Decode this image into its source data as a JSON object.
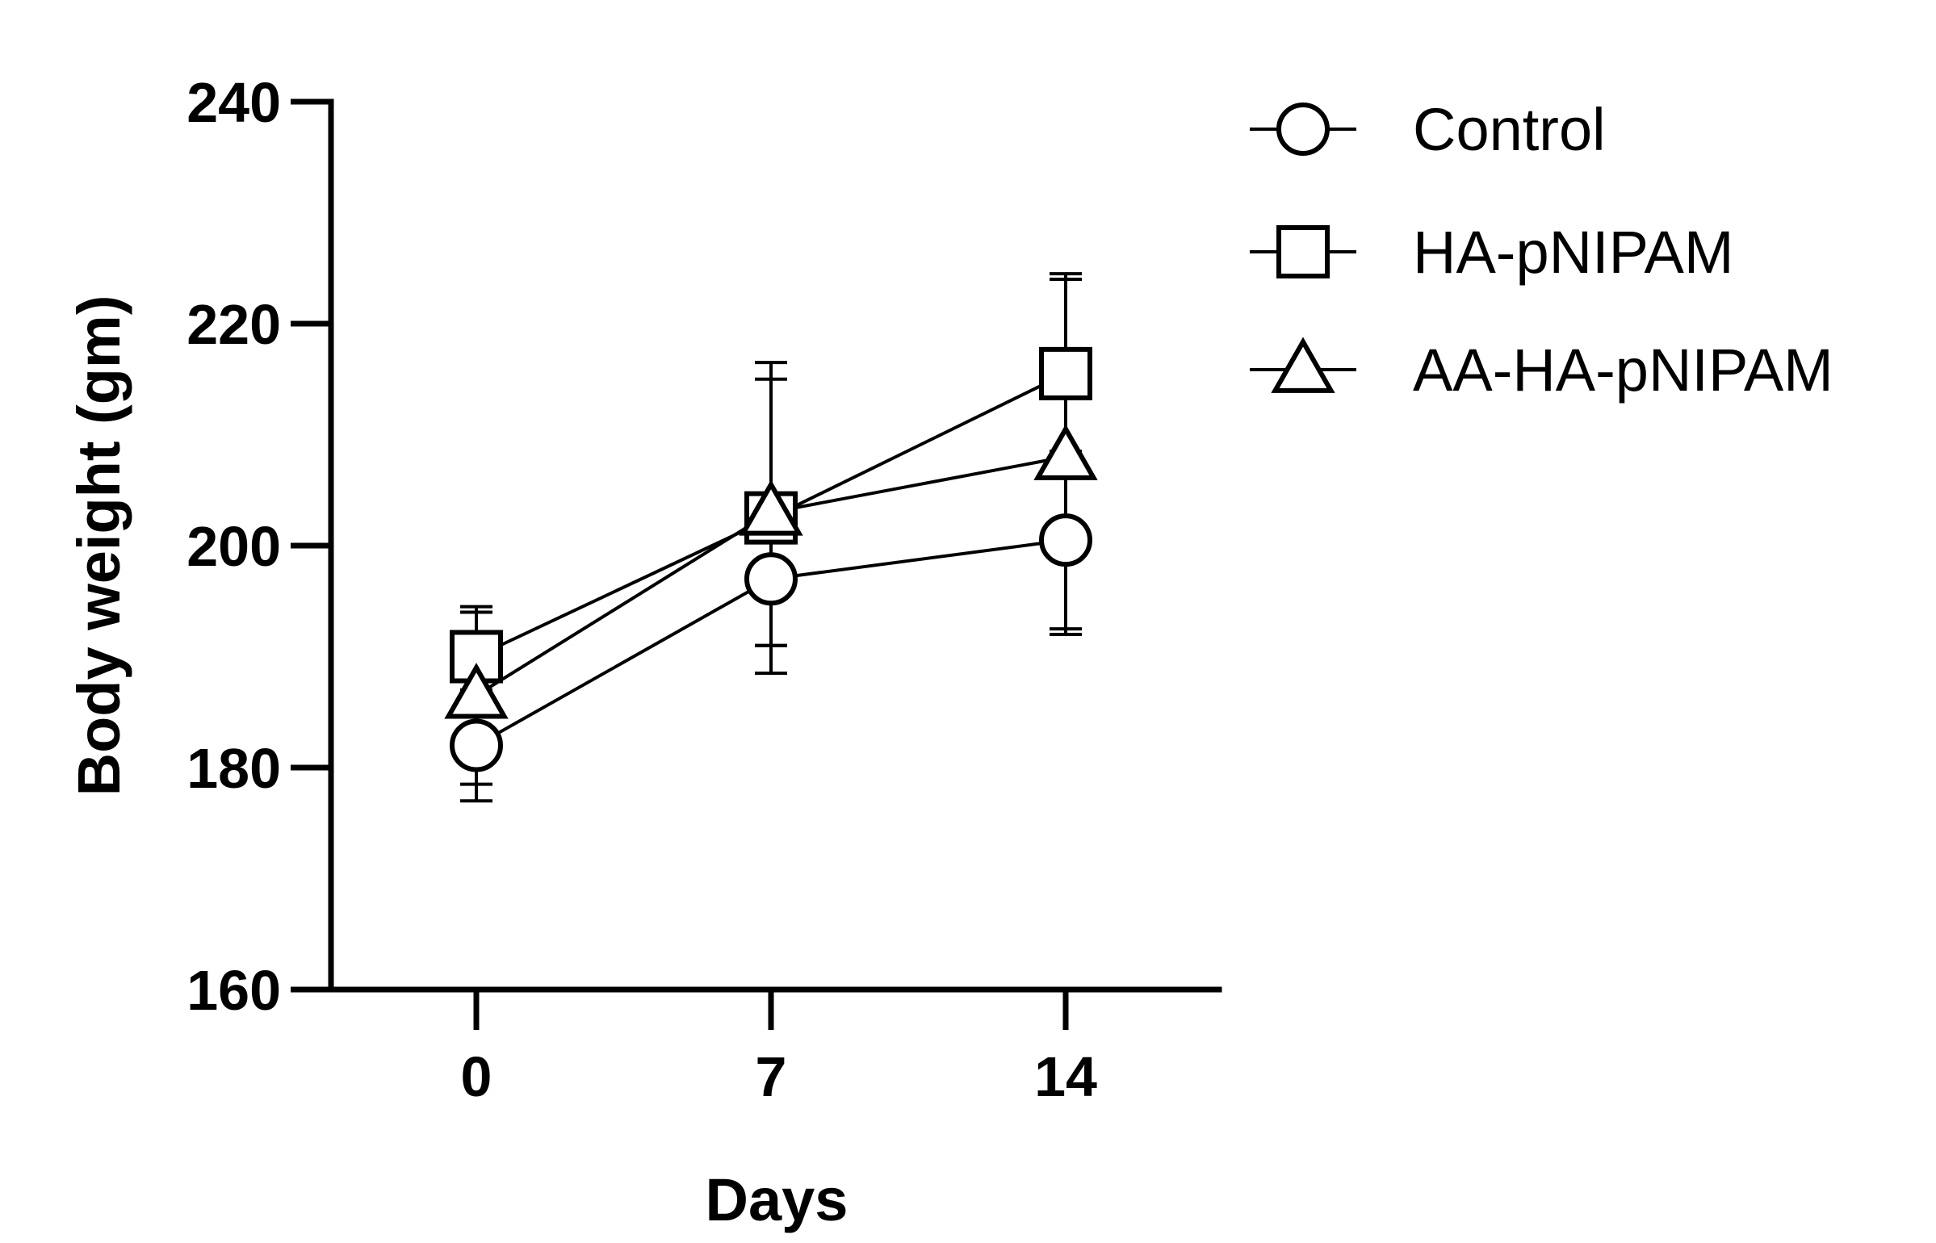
{
  "chart_data": {
    "type": "line",
    "xlabel": "Days",
    "ylabel": "Body weight (gm)",
    "x": [
      0,
      7,
      14
    ],
    "x_ticks": [
      0,
      7,
      14
    ],
    "ylim": [
      160,
      240
    ],
    "y_ticks": [
      160,
      180,
      200,
      220,
      240
    ],
    "grid": false,
    "legend_position": "top-right",
    "series": [
      {
        "name": "Control",
        "marker": "circle",
        "values": [
          182,
          197,
          200.5
        ],
        "error": [
          5,
          6,
          8
        ]
      },
      {
        "name": "HA-pNIPAM",
        "marker": "square",
        "values": [
          190,
          202.5,
          215.5
        ],
        "error": [
          4,
          14,
          9
        ]
      },
      {
        "name": "AA-HA-pNIPAM",
        "marker": "triangle",
        "values": [
          186.5,
          203,
          208
        ],
        "error": [
          8,
          12,
          16
        ]
      }
    ],
    "colors": {
      "line": "#000000",
      "marker_fill": "#ffffff"
    }
  }
}
